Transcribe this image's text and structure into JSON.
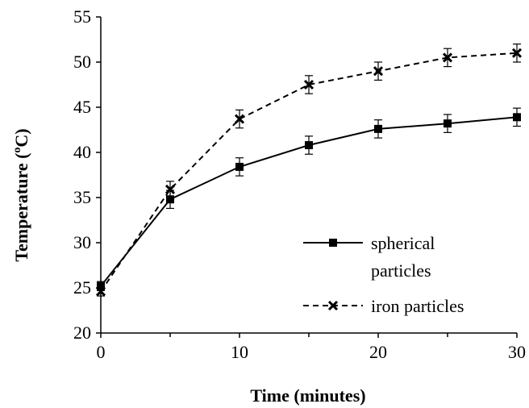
{
  "chart_data": {
    "type": "line",
    "xlabel": "Time (minutes)",
    "ylabel_main": "Temperature (",
    "ylabel_sup": "o",
    "ylabel_end": "C)",
    "xlim": [
      0,
      30
    ],
    "ylim": [
      20,
      55
    ],
    "xticks": [
      "0",
      "10",
      "20",
      "30"
    ],
    "xtick_values": [
      0,
      10,
      20,
      30
    ],
    "xminor_values": [
      5,
      15,
      25
    ],
    "yticks": [
      "20",
      "25",
      "30",
      "35",
      "40",
      "45",
      "50",
      "55"
    ],
    "ytick_values": [
      20,
      25,
      30,
      35,
      40,
      45,
      50,
      55
    ],
    "grid": false,
    "legend_position": "bottom-right",
    "series": [
      {
        "name": "spherical particles",
        "name_lines": [
          "spherical",
          "particles"
        ],
        "marker": "square",
        "line_style": "solid",
        "color": "#000000",
        "x": [
          0,
          5,
          10,
          15,
          20,
          25,
          30
        ],
        "values": [
          25.2,
          34.8,
          38.4,
          40.8,
          42.6,
          43.2,
          43.9
        ],
        "error": [
          0.5,
          1.0,
          1.0,
          1.0,
          1.0,
          1.0,
          1.0
        ]
      },
      {
        "name": "iron particles",
        "name_lines": [
          "iron particles"
        ],
        "marker": "x",
        "line_style": "dashed",
        "color": "#000000",
        "x": [
          0,
          5,
          10,
          15,
          20,
          25,
          30
        ],
        "values": [
          24.6,
          35.9,
          43.7,
          47.5,
          49.0,
          50.5,
          51.0
        ],
        "error": [
          0.5,
          0.9,
          1.0,
          1.0,
          1.0,
          1.0,
          1.0
        ]
      }
    ]
  }
}
